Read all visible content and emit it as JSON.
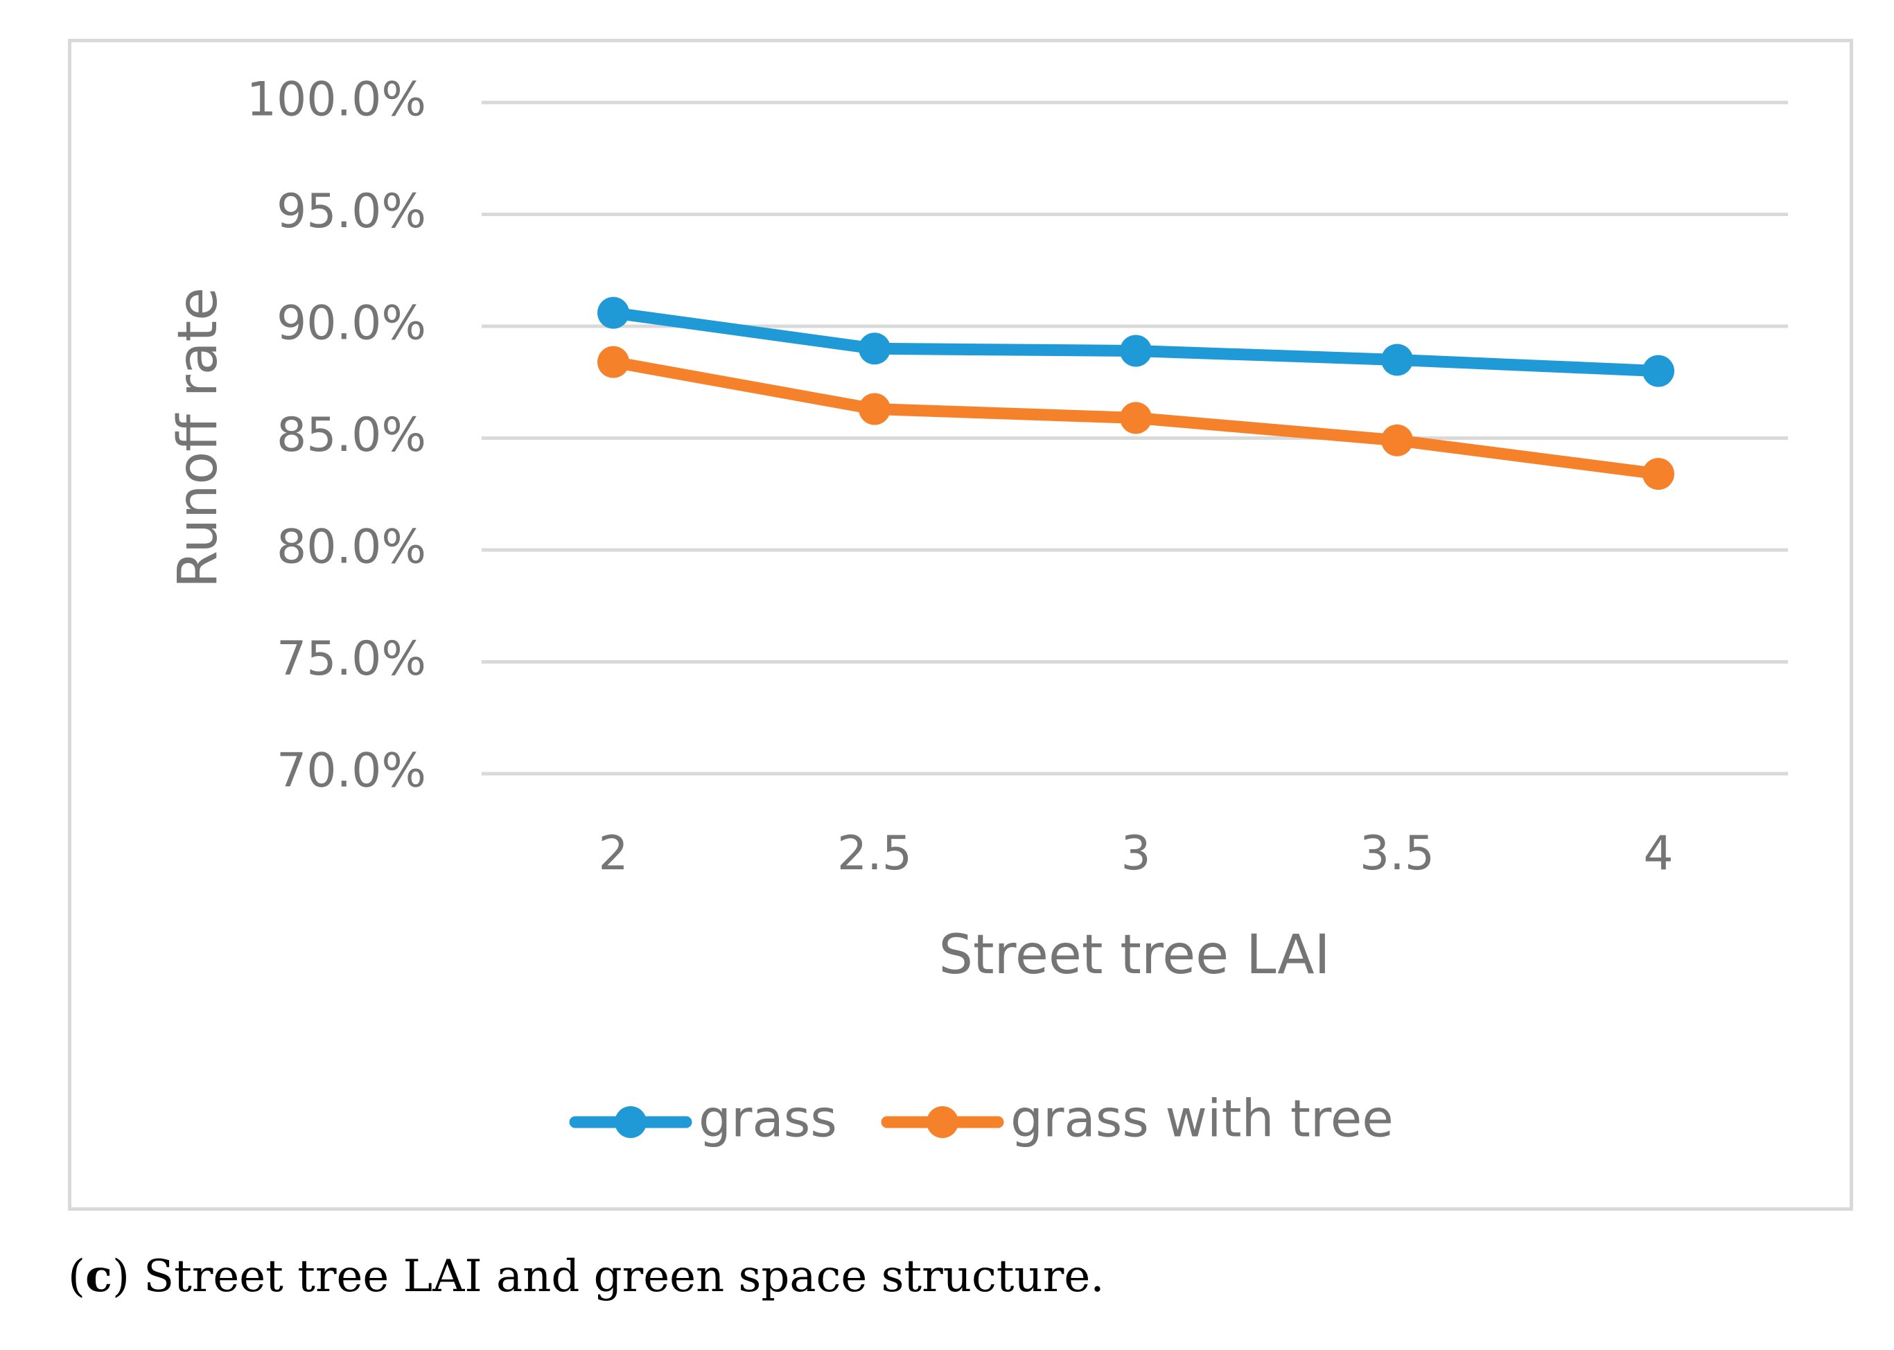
{
  "colors": {
    "grass": "#1f9ad6",
    "grass_with_tree": "#f5822a",
    "text": "#757575",
    "grid": "#d9d9d9"
  },
  "chart_data": {
    "type": "line",
    "title": "",
    "xlabel": "Street tree LAI",
    "ylabel": "Runoff rate",
    "categories": [
      "2",
      "2.5",
      "3",
      "3.5",
      "4"
    ],
    "y_ticks": [
      "70.0%",
      "75.0%",
      "80.0%",
      "85.0%",
      "90.0%",
      "95.0%",
      "100.0%"
    ],
    "ylim": [
      70,
      100
    ],
    "grid": true,
    "legend_position": "bottom",
    "series": [
      {
        "name": "grass",
        "values": [
          90.6,
          89.0,
          88.9,
          88.5,
          88.0
        ]
      },
      {
        "name": "grass with tree",
        "values": [
          88.4,
          86.3,
          85.9,
          84.9,
          83.4
        ]
      }
    ]
  },
  "caption": {
    "letter": "c",
    "text": "Street tree LAI and green space structure."
  }
}
